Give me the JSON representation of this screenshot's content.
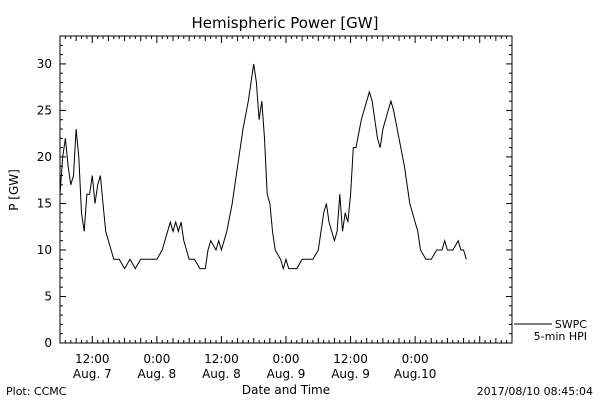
{
  "chart_data": {
    "type": "line",
    "title": "Hemispheric Power [GW]",
    "xlabel": "Date and Time",
    "ylabel": "P [GW]",
    "ylim": [
      0,
      33
    ],
    "yticks": [
      "0",
      "5",
      "10",
      "15",
      "20",
      "25",
      "30"
    ],
    "xlim": [
      "2017-08-07 06:00",
      "2017-08-10 18:00"
    ],
    "xticks": [
      {
        "time": "2017-08-07 12:00",
        "line1": "12:00",
        "line2": "Aug. 7"
      },
      {
        "time": "2017-08-08 00:00",
        "line1": "0:00",
        "line2": "Aug. 8"
      },
      {
        "time": "2017-08-08 12:00",
        "line1": "12:00",
        "line2": "Aug. 8"
      },
      {
        "time": "2017-08-09 00:00",
        "line1": "0:00",
        "line2": "Aug. 9"
      },
      {
        "time": "2017-08-09 12:00",
        "line1": "12:00",
        "line2": "Aug. 9"
      },
      {
        "time": "2017-08-10 00:00",
        "line1": "0:00",
        "line2": "Aug.10"
      }
    ],
    "series": [
      {
        "name": "SWPC 5-min HPI",
        "color": "#000000",
        "points": [
          [
            "2017-08-07 06:00",
            16
          ],
          [
            "2017-08-07 06:30",
            20
          ],
          [
            "2017-08-07 07:00",
            22
          ],
          [
            "2017-08-07 07:30",
            19
          ],
          [
            "2017-08-07 08:00",
            17
          ],
          [
            "2017-08-07 08:30",
            18
          ],
          [
            "2017-08-07 09:00",
            23
          ],
          [
            "2017-08-07 09:30",
            20
          ],
          [
            "2017-08-07 10:00",
            14
          ],
          [
            "2017-08-07 10:30",
            12
          ],
          [
            "2017-08-07 11:00",
            16
          ],
          [
            "2017-08-07 11:30",
            16
          ],
          [
            "2017-08-07 12:00",
            18
          ],
          [
            "2017-08-07 12:30",
            15
          ],
          [
            "2017-08-07 13:00",
            17
          ],
          [
            "2017-08-07 13:30",
            18
          ],
          [
            "2017-08-07 14:00",
            15
          ],
          [
            "2017-08-07 14:30",
            12
          ],
          [
            "2017-08-07 15:00",
            11
          ],
          [
            "2017-08-07 15:30",
            10
          ],
          [
            "2017-08-07 16:00",
            9
          ],
          [
            "2017-08-07 17:00",
            9
          ],
          [
            "2017-08-07 18:00",
            8
          ],
          [
            "2017-08-07 19:00",
            9
          ],
          [
            "2017-08-07 20:00",
            8
          ],
          [
            "2017-08-07 21:00",
            9
          ],
          [
            "2017-08-07 22:00",
            9
          ],
          [
            "2017-08-07 23:00",
            9
          ],
          [
            "2017-08-08 00:00",
            9
          ],
          [
            "2017-08-08 01:00",
            10
          ],
          [
            "2017-08-08 02:00",
            12
          ],
          [
            "2017-08-08 02:30",
            13
          ],
          [
            "2017-08-08 03:00",
            12
          ],
          [
            "2017-08-08 03:30",
            13
          ],
          [
            "2017-08-08 04:00",
            12
          ],
          [
            "2017-08-08 04:30",
            13
          ],
          [
            "2017-08-08 05:00",
            11
          ],
          [
            "2017-08-08 05:30",
            10
          ],
          [
            "2017-08-08 06:00",
            9
          ],
          [
            "2017-08-08 07:00",
            9
          ],
          [
            "2017-08-08 08:00",
            8
          ],
          [
            "2017-08-08 09:00",
            8
          ],
          [
            "2017-08-08 09:30",
            10
          ],
          [
            "2017-08-08 10:00",
            11
          ],
          [
            "2017-08-08 11:00",
            10
          ],
          [
            "2017-08-08 11:30",
            11
          ],
          [
            "2017-08-08 12:00",
            10
          ],
          [
            "2017-08-08 12:30",
            11
          ],
          [
            "2017-08-08 13:00",
            12
          ],
          [
            "2017-08-08 14:00",
            15
          ],
          [
            "2017-08-08 15:00",
            19
          ],
          [
            "2017-08-08 16:00",
            23
          ],
          [
            "2017-08-08 17:00",
            26
          ],
          [
            "2017-08-08 17:30",
            28
          ],
          [
            "2017-08-08 18:00",
            30
          ],
          [
            "2017-08-08 18:30",
            28
          ],
          [
            "2017-08-08 19:00",
            24
          ],
          [
            "2017-08-08 19:30",
            26
          ],
          [
            "2017-08-08 20:00",
            22
          ],
          [
            "2017-08-08 20:30",
            16
          ],
          [
            "2017-08-08 21:00",
            15
          ],
          [
            "2017-08-08 21:30",
            12
          ],
          [
            "2017-08-08 22:00",
            10
          ],
          [
            "2017-08-08 23:00",
            9
          ],
          [
            "2017-08-08 23:30",
            8
          ],
          [
            "2017-08-09 00:00",
            9
          ],
          [
            "2017-08-09 00:30",
            8
          ],
          [
            "2017-08-09 02:00",
            8
          ],
          [
            "2017-08-09 03:00",
            9
          ],
          [
            "2017-08-09 04:00",
            9
          ],
          [
            "2017-08-09 05:00",
            9
          ],
          [
            "2017-08-09 06:00",
            10
          ],
          [
            "2017-08-09 07:00",
            14
          ],
          [
            "2017-08-09 07:30",
            15
          ],
          [
            "2017-08-09 08:00",
            13
          ],
          [
            "2017-08-09 08:30",
            12
          ],
          [
            "2017-08-09 09:00",
            11
          ],
          [
            "2017-08-09 09:30",
            12
          ],
          [
            "2017-08-09 10:00",
            16
          ],
          [
            "2017-08-09 10:30",
            12
          ],
          [
            "2017-08-09 11:00",
            14
          ],
          [
            "2017-08-09 11:30",
            13
          ],
          [
            "2017-08-09 12:00",
            16
          ],
          [
            "2017-08-09 12:30",
            21
          ],
          [
            "2017-08-09 13:00",
            21
          ],
          [
            "2017-08-09 14:00",
            24
          ],
          [
            "2017-08-09 15:00",
            26
          ],
          [
            "2017-08-09 15:30",
            27
          ],
          [
            "2017-08-09 16:00",
            26
          ],
          [
            "2017-08-09 17:00",
            22
          ],
          [
            "2017-08-09 17:30",
            21
          ],
          [
            "2017-08-09 18:00",
            23
          ],
          [
            "2017-08-09 19:00",
            25
          ],
          [
            "2017-08-09 19:30",
            26
          ],
          [
            "2017-08-09 20:00",
            25
          ],
          [
            "2017-08-09 21:00",
            22
          ],
          [
            "2017-08-09 22:00",
            19
          ],
          [
            "2017-08-09 23:00",
            15
          ],
          [
            "2017-08-10 00:00",
            13
          ],
          [
            "2017-08-10 00:30",
            12
          ],
          [
            "2017-08-10 01:00",
            10
          ],
          [
            "2017-08-10 02:00",
            9
          ],
          [
            "2017-08-10 03:00",
            9
          ],
          [
            "2017-08-10 04:00",
            10
          ],
          [
            "2017-08-10 05:00",
            10
          ],
          [
            "2017-08-10 05:30",
            11
          ],
          [
            "2017-08-10 06:00",
            10
          ],
          [
            "2017-08-10 07:00",
            10
          ],
          [
            "2017-08-10 08:00",
            11
          ],
          [
            "2017-08-10 08:30",
            10
          ],
          [
            "2017-08-10 09:00",
            10
          ],
          [
            "2017-08-10 09:30",
            9
          ]
        ]
      }
    ],
    "legend": {
      "position": "bottom-right outside plot",
      "line1": "SWPC",
      "line2": "5-min HPI"
    },
    "grid": false,
    "footer": {
      "left": "Plot: CCMC",
      "right": "2017/08/10 08:45:04"
    }
  }
}
